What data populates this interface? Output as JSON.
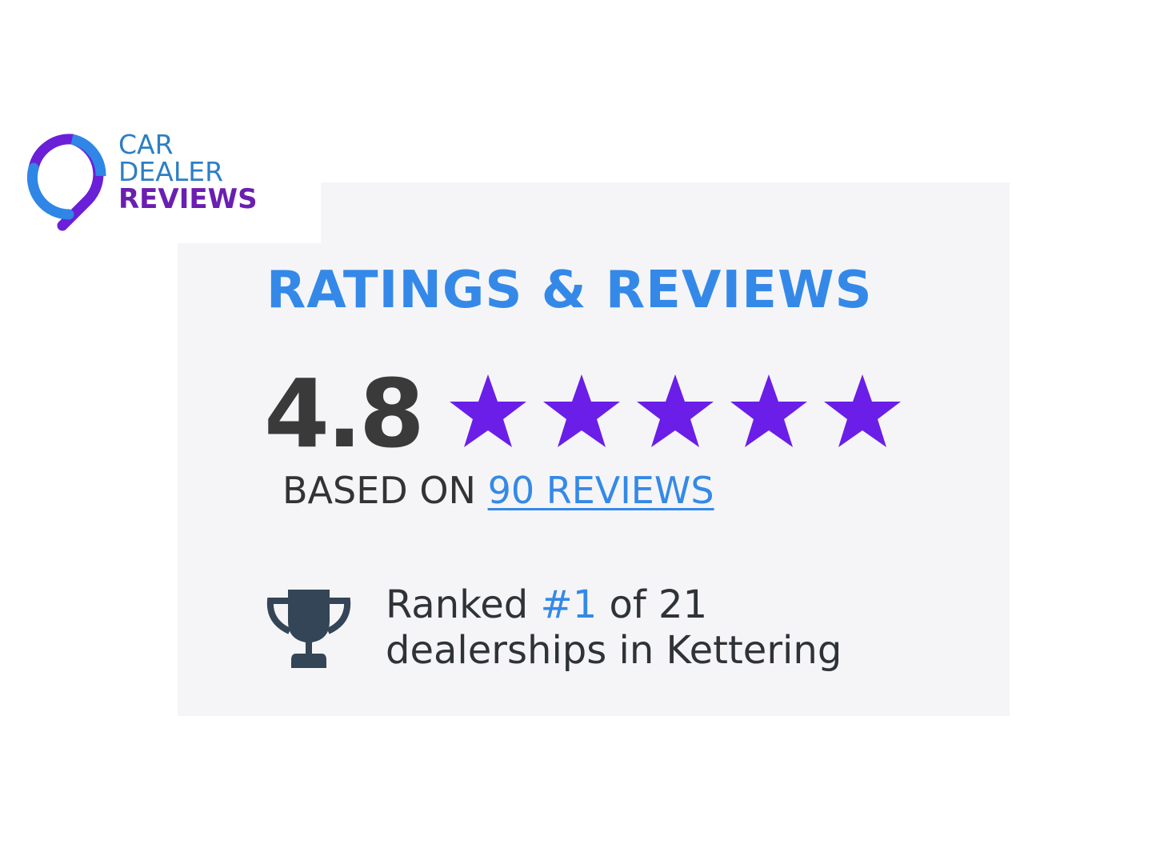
{
  "logo": {
    "line1": "CAR",
    "line2": "DEALER",
    "line3": "REVIEWS"
  },
  "widget": {
    "title": "RATINGS & REVIEWS",
    "score": "4.8",
    "rating": 4.8,
    "max_stars": 5,
    "based_on": "BASED ON",
    "reviews_link": "90 REVIEWS",
    "rank_prefix": "Ranked",
    "rank_value": "#1",
    "rank_suffix": "of 21",
    "rank_line2": "dealerships in Kettering"
  },
  "colors": {
    "accent_blue": "#3489e8",
    "star_purple": "#6a1ee8",
    "text_dark": "#3a3a3a"
  }
}
